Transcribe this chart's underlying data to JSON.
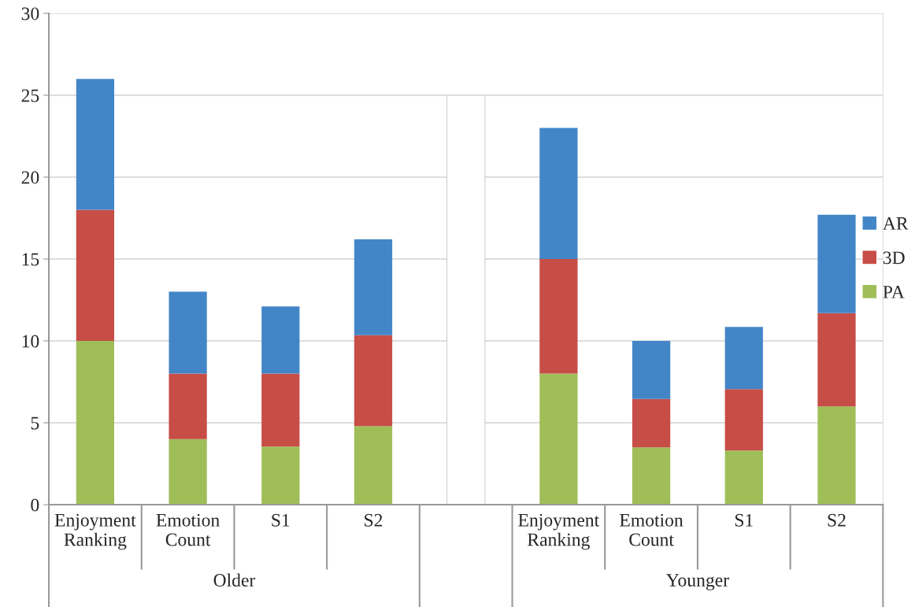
{
  "chart_data": {
    "type": "bar",
    "stacked": true,
    "categories": [
      "Enjoyment\nRanking",
      "Emotion\nCount",
      "S1",
      "S2",
      null,
      "Enjoyment\nRanking",
      "Emotion\nCount",
      "S1",
      "S2"
    ],
    "series": [
      {
        "name": "PA",
        "color": "#9fbe58",
        "values": [
          10,
          4,
          3.55,
          4.8,
          null,
          8,
          3.5,
          3.3,
          6
        ]
      },
      {
        "name": "3D",
        "color": "#c74d47",
        "values": [
          8,
          4,
          4.45,
          5.55,
          null,
          7,
          2.95,
          3.75,
          5.7
        ]
      },
      {
        "name": "AR",
        "color": "#4386c8",
        "values": [
          8,
          5,
          4.1,
          5.85,
          null,
          8,
          3.55,
          3.8,
          6.0
        ]
      },
      {
        "color": "#ffffff",
        "values": [
          null,
          null,
          null,
          null,
          25,
          null,
          null,
          null,
          null
        ]
      }
    ],
    "annotations": [
      "Older",
      "Younger"
    ],
    "ylim": [
      0,
      30
    ],
    "yticks": [
      0,
      5,
      10,
      15,
      20,
      25,
      30
    ],
    "grid": "y",
    "legend": "right"
  }
}
